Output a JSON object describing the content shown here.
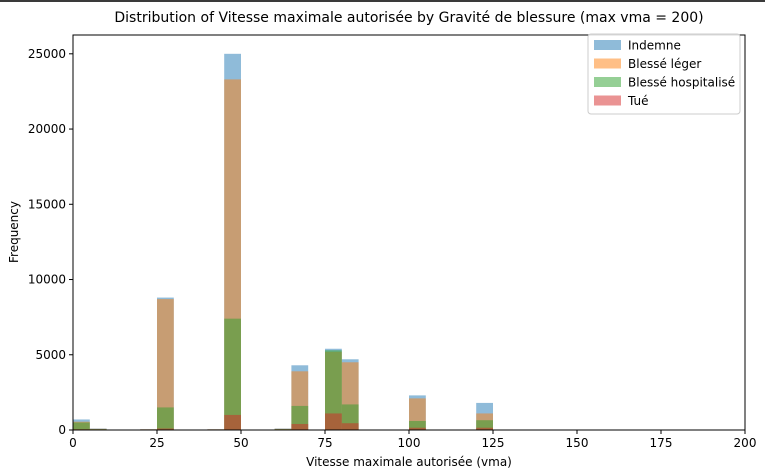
{
  "chart_data": {
    "type": "bar",
    "title": "Distribution of Vitesse maximale autorisée by Gravité de blessure (max vma = 200)",
    "xlabel": "Vitesse maximale autorisée (vma)",
    "ylabel": "Frequency",
    "xlim": [
      0,
      200
    ],
    "ylim": [
      0,
      26250
    ],
    "xticks": [
      0,
      25,
      50,
      75,
      100,
      125,
      150,
      175,
      200
    ],
    "yticks": [
      0,
      5000,
      10000,
      15000,
      20000,
      25000
    ],
    "bin_width": 5,
    "bin_starts": [
      0,
      5,
      10,
      15,
      20,
      25,
      30,
      35,
      40,
      45,
      50,
      55,
      60,
      65,
      70,
      75,
      80,
      85,
      90,
      95,
      100,
      105,
      110,
      115,
      120,
      125,
      130,
      135,
      140,
      145,
      150,
      155,
      160,
      165,
      170,
      175,
      180,
      185,
      190,
      195
    ],
    "grid": false,
    "legend_position": "top-right",
    "series": [
      {
        "name": "Indemne",
        "color": "#1f77b4",
        "values": [
          700,
          100,
          0,
          20,
          50,
          8800,
          0,
          0,
          50,
          25000,
          0,
          0,
          100,
          4300,
          0,
          5400,
          4700,
          0,
          0,
          0,
          2300,
          0,
          0,
          0,
          1800,
          0,
          0,
          0,
          0,
          0,
          0,
          0,
          0,
          0,
          0,
          0,
          0,
          0,
          0,
          0
        ]
      },
      {
        "name": "Blessé léger",
        "color": "#ff7f0e",
        "values": [
          550,
          80,
          0,
          20,
          50,
          8700,
          0,
          0,
          50,
          23300,
          0,
          0,
          80,
          3900,
          0,
          5200,
          4500,
          0,
          0,
          0,
          2100,
          0,
          0,
          0,
          1100,
          0,
          0,
          0,
          0,
          0,
          0,
          0,
          0,
          0,
          0,
          0,
          0,
          0,
          0,
          0
        ]
      },
      {
        "name": "Blessé hospitalisé",
        "color": "#2ca02c",
        "values": [
          500,
          50,
          0,
          10,
          20,
          1500,
          0,
          0,
          20,
          7400,
          0,
          0,
          50,
          1600,
          0,
          5300,
          1700,
          0,
          0,
          0,
          600,
          0,
          0,
          0,
          650,
          0,
          0,
          0,
          0,
          0,
          0,
          0,
          0,
          0,
          0,
          0,
          0,
          0,
          0,
          0
        ]
      },
      {
        "name": "Tué",
        "color": "#d62728",
        "values": [
          50,
          10,
          0,
          0,
          0,
          100,
          0,
          0,
          10,
          1000,
          0,
          0,
          10,
          400,
          0,
          1100,
          450,
          0,
          0,
          0,
          150,
          0,
          0,
          0,
          150,
          0,
          0,
          0,
          0,
          0,
          0,
          0,
          0,
          0,
          0,
          0,
          0,
          0,
          0,
          0
        ]
      }
    ]
  }
}
